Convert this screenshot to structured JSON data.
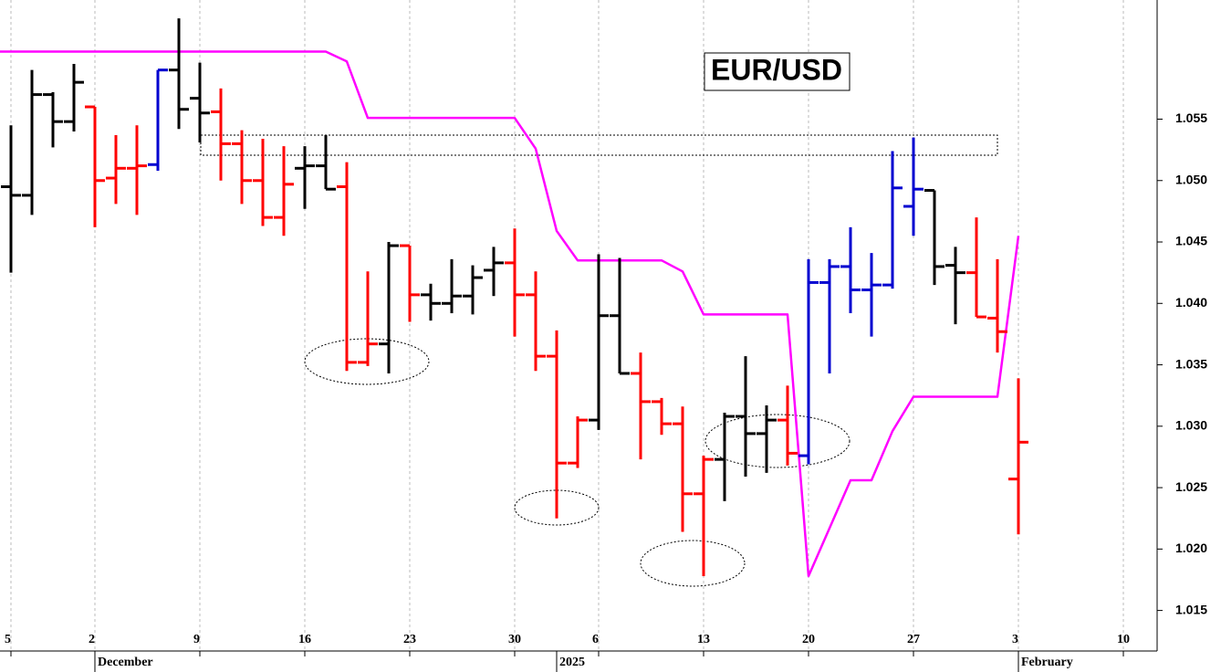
{
  "chart_data": {
    "type": "ohlc",
    "title": "EUR/USD",
    "categories": [
      "5",
      null,
      null,
      null,
      "2",
      null,
      null,
      null,
      null,
      "9",
      null,
      null,
      null,
      null,
      "16",
      null,
      null,
      null,
      null,
      "23",
      null,
      null,
      null,
      null,
      "30",
      null,
      null,
      null,
      "6",
      null,
      null,
      null,
      null,
      "13",
      null,
      null,
      null,
      null,
      "20",
      null,
      null,
      null,
      null,
      "27",
      null,
      null,
      null,
      null,
      "3",
      null,
      null,
      null,
      null,
      "10"
    ],
    "month_labels": [
      null,
      null,
      null,
      null,
      "December",
      null,
      null,
      null,
      null,
      null,
      null,
      null,
      null,
      null,
      null,
      null,
      null,
      null,
      null,
      null,
      null,
      null,
      null,
      null,
      null,
      null,
      "2025",
      null,
      null,
      null,
      null,
      null,
      null,
      null,
      null,
      null,
      null,
      null,
      null,
      null,
      null,
      null,
      null,
      null,
      null,
      null,
      null,
      null,
      "February",
      null,
      null,
      null,
      null,
      null
    ],
    "ohlc": {
      "open": [
        1.0495,
        1.0488,
        1.057,
        1.0548,
        1.056,
        1.0502,
        1.051,
        1.0513,
        1.059,
        1.0567,
        1.0556,
        1.053,
        1.05,
        1.047,
        1.051,
        1.0512,
        1.0495,
        1.0352,
        1.0367,
        1.0447,
        1.0407,
        1.04,
        1.0406,
        1.0427,
        1.0433,
        1.0407,
        1.0357,
        1.027,
        1.0305,
        1.039,
        1.0343,
        1.032,
        1.0302,
        1.0245,
        1.0273,
        1.0308,
        1.0294,
        1.0305,
        1.0276,
        1.0417,
        1.043,
        1.0411,
        1.0415,
        1.0479,
        1.0492,
        1.0431,
        1.0425,
        1.0388,
        1.0257,
        null,
        null,
        null,
        null,
        null
      ],
      "high": [
        1.0545,
        1.059,
        1.0572,
        1.0595,
        1.056,
        1.0537,
        1.0545,
        1.059,
        1.0632,
        1.0596,
        1.0575,
        1.0541,
        1.0534,
        1.0528,
        1.0528,
        1.0537,
        1.0515,
        1.0426,
        1.045,
        1.0447,
        1.0416,
        1.0436,
        1.0431,
        1.0446,
        1.0461,
        1.0426,
        1.0378,
        1.0308,
        1.044,
        1.0437,
        1.036,
        1.0323,
        1.0316,
        1.0276,
        1.0311,
        1.0357,
        1.0317,
        1.0333,
        1.0436,
        1.0436,
        1.0462,
        1.0441,
        1.0524,
        1.0535,
        1.0492,
        1.0446,
        1.047,
        1.0436,
        1.0339,
        null,
        null,
        null,
        null,
        null
      ],
      "low": [
        1.0425,
        1.0472,
        1.0527,
        1.054,
        1.0462,
        1.0481,
        1.0472,
        1.0508,
        1.0542,
        1.0531,
        1.05,
        1.0481,
        1.0463,
        1.0455,
        1.0477,
        1.0493,
        1.0345,
        1.0349,
        1.0343,
        1.0385,
        1.0386,
        1.0392,
        1.0391,
        1.0406,
        1.0373,
        1.0345,
        1.0225,
        1.0266,
        1.0297,
        1.0343,
        1.0273,
        1.0293,
        1.0214,
        1.0178,
        1.0239,
        1.0259,
        1.0262,
        1.0268,
        1.0269,
        1.0343,
        1.0392,
        1.0373,
        1.0412,
        1.0455,
        1.0415,
        1.0383,
        1.0389,
        1.036,
        1.0212,
        null,
        null,
        null,
        null,
        null
      ],
      "close": [
        1.0488,
        1.057,
        1.0548,
        1.058,
        1.05,
        1.051,
        1.0512,
        1.059,
        1.0558,
        1.0555,
        1.053,
        1.05,
        1.047,
        1.0497,
        1.0512,
        1.0493,
        1.0352,
        1.0367,
        1.0447,
        1.0407,
        1.04,
        1.0406,
        1.0421,
        1.0433,
        1.0407,
        1.0357,
        1.027,
        1.0305,
        1.039,
        1.0343,
        1.032,
        1.0302,
        1.0245,
        1.0273,
        1.0308,
        1.0294,
        1.0305,
        1.0278,
        1.0417,
        1.043,
        1.0411,
        1.0415,
        1.0494,
        1.0493,
        1.043,
        1.0425,
        1.0389,
        1.0377,
        1.0287,
        null,
        null,
        null,
        null,
        null
      ],
      "colors": [
        "#000000",
        "#000000",
        "#000000",
        "#000000",
        "#ff0000",
        "#ff0000",
        "#ff0000",
        "#0000d0",
        "#000000",
        "#000000",
        "#ff0000",
        "#ff0000",
        "#ff0000",
        "#ff0000",
        "#000000",
        "#000000",
        "#ff0000",
        "#ff0000",
        "#000000",
        "#ff0000",
        "#000000",
        "#000000",
        "#000000",
        "#000000",
        "#ff0000",
        "#ff0000",
        "#ff0000",
        "#ff0000",
        "#000000",
        "#000000",
        "#ff0000",
        "#ff0000",
        "#ff0000",
        "#ff0000",
        "#000000",
        "#000000",
        "#000000",
        "#ff0000",
        "#0000d0",
        "#0000d0",
        "#0000d0",
        "#0000d0",
        "#0000d0",
        "#0000d0",
        "#000000",
        "#000000",
        "#ff0000",
        "#ff0000",
        "#ff0000",
        null,
        null,
        null,
        null,
        null
      ]
    },
    "overlay": {
      "type": "line",
      "color": "#ff00ff",
      "values": [
        1.0605,
        1.0605,
        1.0605,
        1.0605,
        1.0605,
        1.0605,
        1.0605,
        1.0605,
        1.0605,
        1.0605,
        1.0605,
        1.0605,
        1.0605,
        1.0605,
        1.0605,
        1.0605,
        1.0597,
        1.0551,
        1.0551,
        1.0551,
        1.0551,
        1.0551,
        1.0551,
        1.0551,
        1.0551,
        1.0526,
        1.0459,
        1.0435,
        1.0435,
        1.0435,
        1.0435,
        1.0435,
        1.0426,
        1.0391,
        1.0391,
        1.0391,
        1.0391,
        1.0391,
        1.0178,
        1.0217,
        1.0256,
        1.0256,
        1.0296,
        1.0324,
        1.0324,
        1.0324,
        1.0324,
        1.0324,
        1.0455,
        null,
        null,
        null,
        null,
        null
      ]
    },
    "ylim": [
      1.0117,
      1.0647
    ],
    "yticks": [
      1.015,
      {
        "value": 1.02,
        "label": "1.020"
      },
      1.025,
      {
        "value": 1.03,
        "label": "1.030"
      },
      1.035,
      {
        "value": 1.04,
        "label": "1.040"
      },
      1.045,
      {
        "value": 1.05,
        "label": "1.050"
      },
      1.055
    ],
    "grid": true
  }
}
